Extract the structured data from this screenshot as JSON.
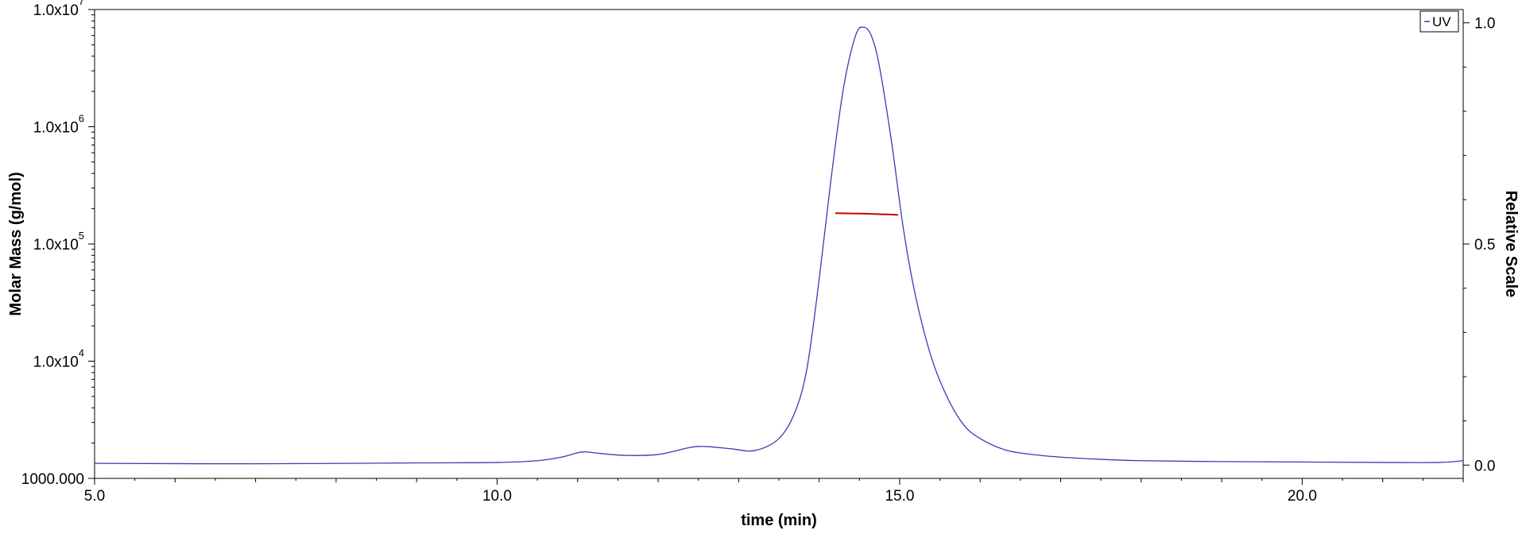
{
  "chart_data": {
    "type": "line",
    "xlabel": "time (min)",
    "ylabel_left": "Molar Mass (g/mol)",
    "ylabel_right": "Relative Scale",
    "xlim": [
      5.0,
      22.0
    ],
    "ylim_left": [
      1000.0,
      10000000.0
    ],
    "ylim_right": [
      -0.03,
      1.03
    ],
    "left_scale": "log",
    "grid": false,
    "legend_position": "top-right",
    "x_ticks": [
      5.0,
      10.0,
      15.0,
      20.0
    ],
    "x_tick_labels": [
      "5.0",
      "10.0",
      "15.0",
      "20.0"
    ],
    "left_ticks": [
      {
        "value": 1000.0,
        "mantissa": "1000.000",
        "exponent": ""
      },
      {
        "value": 10000.0,
        "mantissa": "1.0x10",
        "exponent": "4"
      },
      {
        "value": 100000.0,
        "mantissa": "1.0x10",
        "exponent": "5"
      },
      {
        "value": 1000000.0,
        "mantissa": "1.0x10",
        "exponent": "6"
      },
      {
        "value": 10000000.0,
        "mantissa": "1.0x10",
        "exponent": "7"
      }
    ],
    "right_ticks": [
      0.0,
      0.5,
      1.0
    ],
    "right_tick_labels": [
      "0.0",
      "0.5",
      "1.0"
    ],
    "legend": [
      {
        "label": "UV",
        "color": "#3b3bb0"
      }
    ],
    "series": [
      {
        "name": "UV",
        "axis": "right",
        "color": "#3b3bb0",
        "x": [
          5.0,
          7.0,
          9.0,
          10.0,
          10.5,
          10.8,
          11.0,
          11.1,
          11.3,
          11.6,
          12.0,
          12.4,
          12.6,
          12.9,
          13.2,
          13.5,
          13.7,
          13.85,
          14.0,
          14.15,
          14.3,
          14.45,
          14.55,
          14.65,
          14.75,
          14.9,
          15.05,
          15.2,
          15.4,
          15.6,
          15.8,
          16.0,
          16.3,
          16.6,
          17.0,
          17.5,
          18.0,
          19.0,
          20.0,
          21.0,
          21.7,
          22.0
        ],
        "y": [
          0.004,
          0.003,
          0.005,
          0.006,
          0.01,
          0.018,
          0.028,
          0.03,
          0.026,
          0.022,
          0.024,
          0.04,
          0.042,
          0.037,
          0.033,
          0.06,
          0.12,
          0.22,
          0.42,
          0.65,
          0.85,
          0.97,
          0.99,
          0.97,
          0.9,
          0.73,
          0.53,
          0.38,
          0.24,
          0.15,
          0.09,
          0.06,
          0.035,
          0.025,
          0.018,
          0.013,
          0.01,
          0.008,
          0.007,
          0.006,
          0.006,
          0.01
        ]
      },
      {
        "name": "Molar Mass",
        "axis": "left",
        "color": "#cc0000",
        "x": [
          14.2,
          14.4,
          14.6,
          14.8,
          14.98
        ],
        "y": [
          183000.0,
          182000.0,
          181000.0,
          179000.0,
          177000.0
        ]
      }
    ]
  }
}
